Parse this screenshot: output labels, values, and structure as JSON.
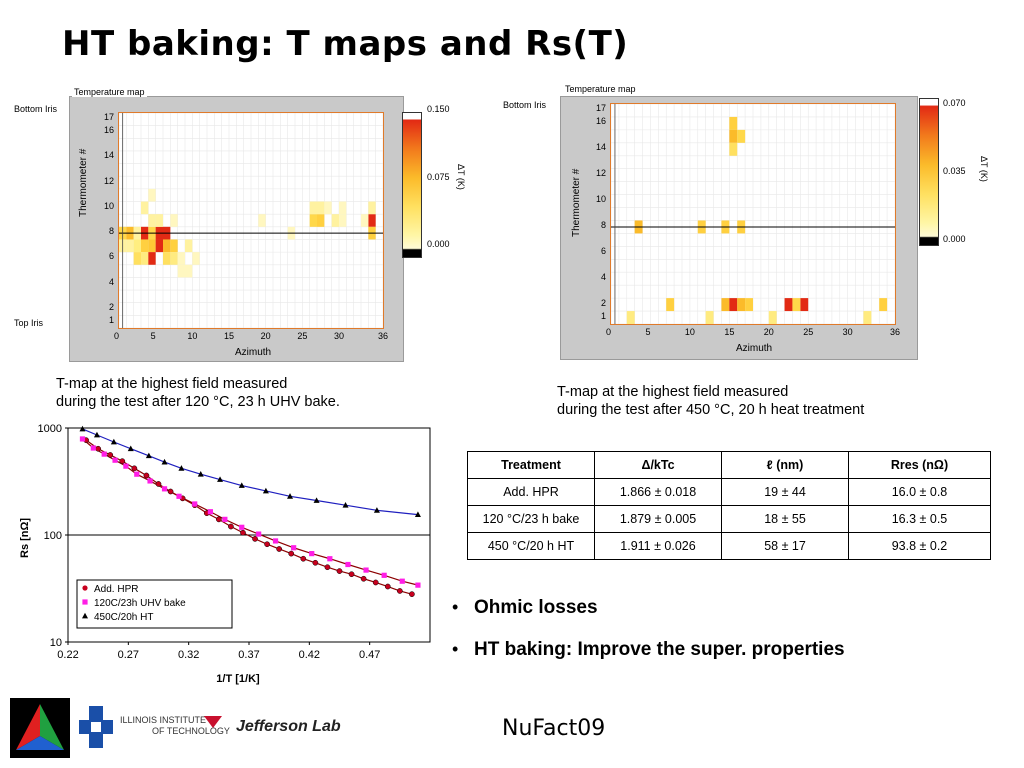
{
  "title": "HT baking: T maps and Rs(T)",
  "tmap_left": {
    "panel_title": "Temperature map",
    "top_label": "Bottom Iris",
    "bottom_label": "Top Iris",
    "y_axis_label": "Thermometer #",
    "x_axis_label": "Azimuth",
    "y_ticks": [
      "1",
      "2",
      "4",
      "6",
      "8",
      "10",
      "12",
      "14",
      "16",
      "17"
    ],
    "x_ticks": [
      "0",
      "5",
      "10",
      "15",
      "20",
      "25",
      "30",
      "36"
    ],
    "scale_label": "ΔT (K)",
    "scale_ticks": [
      "0.150",
      "0.075",
      "0.000"
    ],
    "caption_line1": "T-map at the highest field measured",
    "caption_line2": "during the test after 120 °C, 23 h UHV bake.",
    "hot_cells": [
      [
        1,
        8,
        "#ffd84a"
      ],
      [
        1,
        7,
        "#fff2a0"
      ],
      [
        2,
        8,
        "#fbbb2a"
      ],
      [
        2,
        7,
        "#fff2a0"
      ],
      [
        3,
        7,
        "#ffee80"
      ],
      [
        3,
        6,
        "#ffe060"
      ],
      [
        3,
        8,
        "#fff2a0"
      ],
      [
        4,
        8,
        "#e22a14"
      ],
      [
        4,
        7,
        "#ffd040"
      ],
      [
        4,
        6,
        "#ffeb80"
      ],
      [
        5,
        8,
        "#ffd84a"
      ],
      [
        5,
        7,
        "#ffc835"
      ],
      [
        5,
        6,
        "#e22a14"
      ],
      [
        5,
        9,
        "#fff2a0"
      ],
      [
        6,
        8,
        "#e22a14"
      ],
      [
        6,
        7,
        "#e22a14"
      ],
      [
        6,
        9,
        "#fff2a0"
      ],
      [
        7,
        8,
        "#e22a14"
      ],
      [
        7,
        7,
        "#fbbb2a"
      ],
      [
        7,
        6,
        "#ffe060"
      ],
      [
        8,
        7,
        "#ffd040"
      ],
      [
        8,
        6,
        "#ffeb80"
      ],
      [
        9,
        6,
        "#fff7c0"
      ],
      [
        9,
        5,
        "#fff7c0"
      ],
      [
        10,
        7,
        "#fff2a0"
      ],
      [
        10,
        5,
        "#fff7c0"
      ],
      [
        11,
        6,
        "#fff7c0"
      ],
      [
        4,
        10,
        "#fff2a0"
      ],
      [
        5,
        11,
        "#fff7c0"
      ],
      [
        8,
        9,
        "#fff7c0"
      ],
      [
        27,
        9,
        "#ffd84a"
      ],
      [
        28,
        9,
        "#ffd040"
      ],
      [
        27,
        10,
        "#fff2a0"
      ],
      [
        28,
        10,
        "#fff2a0"
      ],
      [
        29,
        10,
        "#fff7c0"
      ],
      [
        30,
        9,
        "#fff2a0"
      ],
      [
        31,
        10,
        "#fff7c0"
      ],
      [
        31,
        9,
        "#fff7c0"
      ],
      [
        35,
        9,
        "#e22a14"
      ],
      [
        35,
        8,
        "#ffd040"
      ],
      [
        35,
        10,
        "#fff2a0"
      ],
      [
        34,
        9,
        "#fff7c0"
      ],
      [
        20,
        9,
        "#fff7c0"
      ],
      [
        24,
        8,
        "#fff7c0"
      ]
    ]
  },
  "tmap_right": {
    "panel_title": "Temperature map",
    "top_label": "Bottom Iris",
    "y_axis_label": "Thermometer #",
    "x_axis_label": "Azimuth",
    "y_ticks": [
      "1",
      "2",
      "4",
      "6",
      "8",
      "10",
      "12",
      "14",
      "16",
      "17"
    ],
    "x_ticks": [
      "0",
      "5",
      "10",
      "15",
      "20",
      "25",
      "30",
      "36"
    ],
    "scale_label": "ΔT (K)",
    "scale_ticks": [
      "0.070",
      "0.035",
      "0.000"
    ],
    "caption_line1": "T-map at the highest field measured",
    "caption_line2": "during the test after 450 °C, 20 h heat treatment",
    "hot_cells": [
      [
        15,
        2,
        "#fbbb2a"
      ],
      [
        16,
        2,
        "#e22a14"
      ],
      [
        17,
        2,
        "#fbbb2a"
      ],
      [
        18,
        2,
        "#ffd040"
      ],
      [
        23,
        2,
        "#e22a14"
      ],
      [
        25,
        2,
        "#e22a14"
      ],
      [
        24,
        2,
        "#ffd84a"
      ],
      [
        8,
        2,
        "#ffd040"
      ],
      [
        35,
        2,
        "#ffd040"
      ],
      [
        4,
        8,
        "#fbbb2a"
      ],
      [
        12,
        8,
        "#ffd040"
      ],
      [
        15,
        8,
        "#ffd040"
      ],
      [
        17,
        8,
        "#ffd040"
      ],
      [
        16,
        16,
        "#ffd040"
      ],
      [
        16,
        15,
        "#fbbb2a"
      ],
      [
        17,
        15,
        "#ffd84a"
      ],
      [
        16,
        14,
        "#ffe060"
      ],
      [
        3,
        1,
        "#ffeb80"
      ],
      [
        13,
        1,
        "#ffeb80"
      ],
      [
        21,
        1,
        "#ffeb80"
      ],
      [
        33,
        1,
        "#ffeb80"
      ]
    ]
  },
  "rs_chart": {
    "chart_data": {
      "type": "scatter",
      "x_label": "1/T [1/K]",
      "y_label": "Rs [nΩ]",
      "x_ticks": [
        "0.22",
        "0.27",
        "0.32",
        "0.37",
        "0.42",
        "0.47"
      ],
      "y_ticks": [
        "1000",
        "100",
        "10"
      ],
      "xlim": [
        0.22,
        0.52
      ],
      "ylim_log10": [
        1,
        3
      ],
      "log_y": true,
      "series": [
        {
          "name": "Add. HPR",
          "marker": "circle",
          "color": "#c8001e",
          "x": [
            0.235,
            0.245,
            0.255,
            0.265,
            0.275,
            0.285,
            0.295,
            0.305,
            0.315,
            0.325,
            0.335,
            0.345,
            0.355,
            0.365,
            0.375,
            0.385,
            0.395,
            0.405,
            0.415,
            0.425,
            0.435,
            0.445,
            0.455,
            0.465,
            0.475,
            0.485,
            0.495,
            0.505
          ],
          "y": [
            770,
            640,
            560,
            490,
            420,
            360,
            300,
            255,
            220,
            190,
            160,
            140,
            120,
            105,
            92,
            82,
            74,
            67,
            60,
            55,
            50,
            46,
            43,
            39,
            36,
            33,
            30,
            28
          ]
        },
        {
          "name": "120C/23h UHV bake",
          "marker": "square",
          "color": "#ff1ee6",
          "x": [
            0.232,
            0.241,
            0.25,
            0.259,
            0.268,
            0.277,
            0.288,
            0.3,
            0.312,
            0.325,
            0.338,
            0.35,
            0.364,
            0.378,
            0.392,
            0.407,
            0.422,
            0.437,
            0.452,
            0.467,
            0.482,
            0.497,
            0.51
          ],
          "y": [
            790,
            650,
            570,
            500,
            440,
            370,
            320,
            270,
            230,
            195,
            165,
            140,
            118,
            102,
            88,
            76,
            67,
            60,
            53,
            47,
            42,
            37,
            34
          ]
        },
        {
          "name": "450C/20h HT",
          "marker": "triangle",
          "color": "#000000",
          "x": [
            0.232,
            0.244,
            0.258,
            0.272,
            0.287,
            0.3,
            0.314,
            0.33,
            0.346,
            0.364,
            0.384,
            0.404,
            0.426,
            0.45,
            0.476,
            0.51
          ],
          "y": [
            980,
            860,
            740,
            640,
            550,
            480,
            420,
            370,
            330,
            290,
            258,
            230,
            210,
            190,
            170,
            155
          ]
        }
      ]
    }
  },
  "table": {
    "headers": [
      "Treatment",
      "Δ/kTc",
      "ℓ (nm)",
      "Rres (nΩ)"
    ],
    "rows": [
      [
        "Add. HPR",
        "1.866 ± 0.018",
        "19 ± 44",
        "16.0 ± 0.8"
      ],
      [
        "120 °C/23 h bake",
        "1.879 ± 0.005",
        "18 ± 55",
        "16.3 ± 0.5"
      ],
      [
        "450 °C/20 h HT",
        "1.911 ± 0.026",
        "58 ± 17",
        "93.8 ± 0.2"
      ]
    ]
  },
  "bullets": [
    "Ohmic losses",
    "HT baking: Improve the super. properties"
  ],
  "logos": {
    "iit_line1": "ILLINOIS INSTITUTE",
    "iit_line2": "OF TECHNOLOGY",
    "jlab": "Jefferson Lab"
  },
  "footer": "NuFact09"
}
